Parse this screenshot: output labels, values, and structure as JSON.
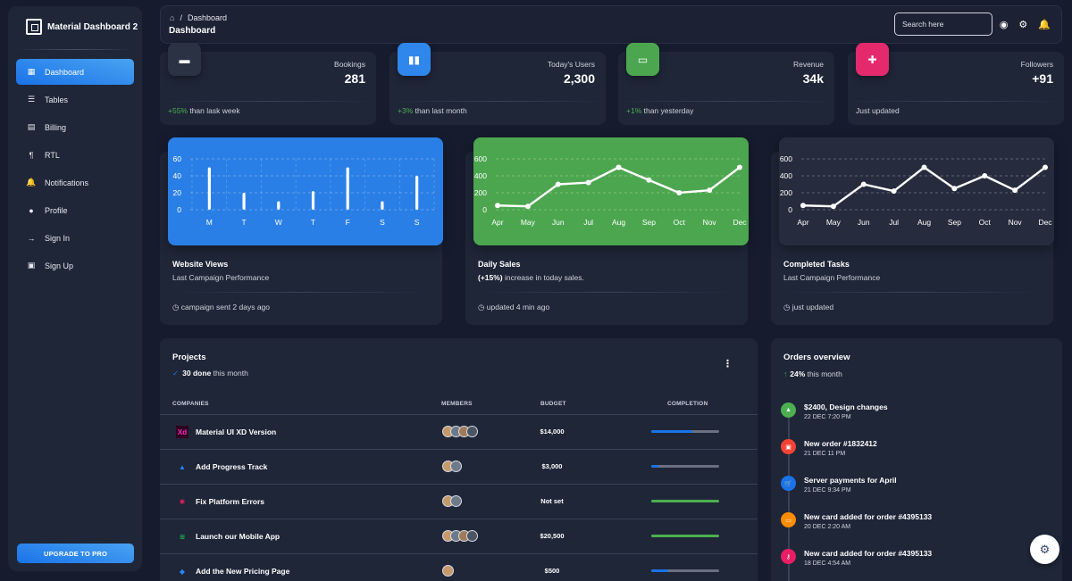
{
  "sidebar": {
    "brand": "Material Dashboard 2",
    "items": [
      {
        "label": "Dashboard",
        "icon": "dashboard-icon",
        "glyph": "▦"
      },
      {
        "label": "Tables",
        "icon": "table-icon",
        "glyph": "☰"
      },
      {
        "label": "Billing",
        "icon": "receipt-icon",
        "glyph": "▤"
      },
      {
        "label": "RTL",
        "icon": "format-textdirection-icon",
        "glyph": "¶"
      },
      {
        "label": "Notifications",
        "icon": "bell-icon",
        "glyph": "🔔"
      },
      {
        "label": "Profile",
        "icon": "person-icon",
        "glyph": "●"
      },
      {
        "label": "Sign In",
        "icon": "login-icon",
        "glyph": "→"
      },
      {
        "label": "Sign Up",
        "icon": "assignment-icon",
        "glyph": "▣"
      }
    ],
    "upgrade": "UPGRADE TO PRO"
  },
  "topbar": {
    "breadcrumb_current": "Dashboard",
    "title": "Dashboard",
    "search_placeholder": "Search here"
  },
  "stats": [
    {
      "label": "Bookings",
      "value": "281",
      "delta": "+55%",
      "foot": " than lask week",
      "color": "#2b3244",
      "glyph": "▬"
    },
    {
      "label": "Today's Users",
      "value": "2,300",
      "delta": "+3%",
      "foot": " than last month",
      "color": "#2f86eb",
      "glyph": "▮▮"
    },
    {
      "label": "Revenue",
      "value": "34k",
      "delta": "+1%",
      "foot": " than yesterday",
      "color": "#4ca64f",
      "glyph": "▭"
    },
    {
      "label": "Followers",
      "value": "+91",
      "delta": "",
      "foot": "Just updated",
      "color": "#e42a6d",
      "glyph": "✚"
    }
  ],
  "charts": [
    {
      "title": "Website Views",
      "subtitle_bold": "",
      "subtitle": "Last Campaign Performance",
      "foot": "campaign sent 2 days ago",
      "bg": "#2a7fe6",
      "chart_data": {
        "type": "bar",
        "categories": [
          "M",
          "T",
          "W",
          "T",
          "F",
          "S",
          "S"
        ],
        "values": [
          50,
          20,
          10,
          22,
          50,
          10,
          40
        ],
        "yticks": [
          0,
          20,
          40,
          60
        ],
        "ylim": [
          0,
          60
        ]
      }
    },
    {
      "title": "Daily Sales",
      "subtitle_bold": "(+15%)",
      "subtitle": " increase in today sales.",
      "foot": "updated 4 min ago",
      "bg": "#4ca64f",
      "chart_data": {
        "type": "line",
        "categories": [
          "Apr",
          "May",
          "Jun",
          "Jul",
          "Aug",
          "Sep",
          "Oct",
          "Nov",
          "Dec"
        ],
        "values": [
          50,
          40,
          300,
          320,
          500,
          350,
          200,
          230,
          500
        ],
        "yticks": [
          0,
          200,
          400,
          600
        ],
        "ylim": [
          0,
          600
        ]
      }
    },
    {
      "title": "Completed Tasks",
      "subtitle_bold": "",
      "subtitle": "Last Campaign Performance",
      "foot": "just updated",
      "bg": "#262c3e",
      "chart_data": {
        "type": "line",
        "categories": [
          "Apr",
          "May",
          "Jun",
          "Jul",
          "Aug",
          "Sep",
          "Oct",
          "Nov",
          "Dec"
        ],
        "values": [
          50,
          40,
          300,
          220,
          500,
          250,
          400,
          230,
          500
        ],
        "yticks": [
          0,
          200,
          400,
          600
        ],
        "ylim": [
          0,
          600
        ]
      }
    }
  ],
  "projects": {
    "title": "Projects",
    "done_count": "30 done",
    "done_suffix": " this month",
    "headers": [
      "COMPANIES",
      "MEMBERS",
      "BUDGET",
      "COMPLETION"
    ],
    "rows": [
      {
        "name": "Material UI XD Version",
        "logo": "Xd",
        "logo_color": "#ff2bc2",
        "logo_bg": "#2e001f",
        "members": 4,
        "budget": "$14,000",
        "completion": 60,
        "bar_color": "#1a73e8"
      },
      {
        "name": "Add Progress Track",
        "logo": "▲",
        "logo_color": "#2684ff",
        "logo_bg": "transparent",
        "members": 2,
        "budget": "$3,000",
        "completion": 10,
        "bar_color": "#1a73e8"
      },
      {
        "name": "Fix Platform Errors",
        "logo": "✱",
        "logo_color": "#e01e5a",
        "logo_bg": "transparent",
        "members": 2,
        "budget": "Not set",
        "completion": 100,
        "bar_color": "#4caf50"
      },
      {
        "name": "Launch our Mobile App",
        "logo": "≋",
        "logo_color": "#1db954",
        "logo_bg": "transparent",
        "members": 4,
        "budget": "$20,500",
        "completion": 100,
        "bar_color": "#4caf50"
      },
      {
        "name": "Add the New Pricing Page",
        "logo": "◆",
        "logo_color": "#2684ff",
        "logo_bg": "transparent",
        "members": 1,
        "budget": "$500",
        "completion": 25,
        "bar_color": "#1a73e8"
      }
    ]
  },
  "orders": {
    "title": "Orders overview",
    "percent": "24%",
    "suffix": " this month",
    "items": [
      {
        "text": "$2400, Design changes",
        "date": "22 DEC 7:20 PM",
        "color": "#4caf50",
        "icon": "bell-icon",
        "glyph": "▲"
      },
      {
        "text": "New order #1832412",
        "date": "21 DEC 11 PM",
        "color": "#f44335",
        "icon": "inventory-icon",
        "glyph": "▣"
      },
      {
        "text": "Server payments for April",
        "date": "21 DEC 9:34 PM",
        "color": "#1a73e8",
        "icon": "shopping-cart-icon",
        "glyph": "🛒"
      },
      {
        "text": "New card added for order #4395133",
        "date": "20 DEC 2:20 AM",
        "color": "#fb8c00",
        "icon": "credit-card-icon",
        "glyph": "▭"
      },
      {
        "text": "New card added for order #4395133",
        "date": "18 DEC 4:54 AM",
        "color": "#e91e63",
        "icon": "key-icon",
        "glyph": "⚷"
      }
    ]
  }
}
